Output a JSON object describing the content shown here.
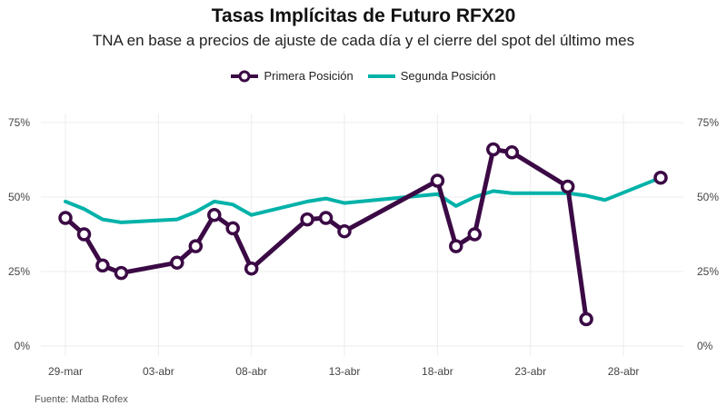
{
  "title": "Tasas Implícitas de Futuro RFX20",
  "subtitle": "TNA en base a precios de ajuste de cada día y el cierre del spot del último mes",
  "caption": "Fuente: Matba Rofex",
  "colors": {
    "series1": "#3b0a45",
    "series2": "#00b2a9",
    "grid": "#ececec",
    "background": "#ffffff"
  },
  "chart_data": {
    "type": "line",
    "title": "Tasas Implícitas de Futuro RFX20",
    "subtitle": "TNA en base a precios de ajuste de cada día y el cierre del spot del último mes",
    "x_axis": {
      "type": "date",
      "range": [
        "2021-03-29",
        "2021-04-30"
      ],
      "tick_labels": [
        "29-mar",
        "03-abr",
        "08-abr",
        "13-abr",
        "18-abr",
        "23-abr",
        "28-abr"
      ],
      "tick_dates": [
        "2021-03-29",
        "2021-04-03",
        "2021-04-08",
        "2021-04-13",
        "2021-04-18",
        "2021-04-23",
        "2021-04-28"
      ]
    },
    "y_axis": {
      "ylim": [
        0,
        0.75
      ],
      "tick_values": [
        0,
        0.25,
        0.5,
        0.75
      ],
      "tick_labels": [
        "0%",
        "25%",
        "50%",
        "75%"
      ],
      "mirrored_right": true
    },
    "grid": true,
    "legend_position": "top-center",
    "series": [
      {
        "name": "Primera Posición",
        "color": "#3b0a45",
        "markers": true,
        "points": [
          {
            "x": "2021-03-29",
            "y": 0.43
          },
          {
            "x": "2021-03-30",
            "y": 0.375
          },
          {
            "x": "2021-03-31",
            "y": 0.27
          },
          {
            "x": "2021-04-01",
            "y": 0.245
          },
          {
            "x": "2021-04-04",
            "y": 0.28
          },
          {
            "x": "2021-04-05",
            "y": 0.335
          },
          {
            "x": "2021-04-06",
            "y": 0.44
          },
          {
            "x": "2021-04-07",
            "y": 0.395
          },
          {
            "x": "2021-04-08",
            "y": 0.26
          },
          {
            "x": "2021-04-11",
            "y": 0.425
          },
          {
            "x": "2021-04-12",
            "y": 0.43
          },
          {
            "x": "2021-04-13",
            "y": 0.385
          },
          {
            "x": "2021-04-18",
            "y": 0.555
          },
          {
            "x": "2021-04-19",
            "y": 0.335
          },
          {
            "x": "2021-04-20",
            "y": 0.375
          },
          {
            "x": "2021-04-21",
            "y": 0.66
          },
          {
            "x": "2021-04-22",
            "y": 0.65
          },
          {
            "x": "2021-04-25",
            "y": 0.535
          },
          {
            "x": "2021-04-26",
            "y": 0.09
          },
          {
            "x": "2021-04-30",
            "y": 0.565
          }
        ],
        "connected_through": "2021-04-26"
      },
      {
        "name": "Segunda Posición",
        "color": "#00b2a9",
        "markers": false,
        "points": [
          {
            "x": "2021-03-29",
            "y": 0.485
          },
          {
            "x": "2021-03-30",
            "y": 0.46
          },
          {
            "x": "2021-03-31",
            "y": 0.425
          },
          {
            "x": "2021-04-01",
            "y": 0.415
          },
          {
            "x": "2021-04-04",
            "y": 0.425
          },
          {
            "x": "2021-04-05",
            "y": 0.45
          },
          {
            "x": "2021-04-06",
            "y": 0.485
          },
          {
            "x": "2021-04-07",
            "y": 0.475
          },
          {
            "x": "2021-04-08",
            "y": 0.44
          },
          {
            "x": "2021-04-11",
            "y": 0.485
          },
          {
            "x": "2021-04-12",
            "y": 0.495
          },
          {
            "x": "2021-04-13",
            "y": 0.48
          },
          {
            "x": "2021-04-18",
            "y": 0.51
          },
          {
            "x": "2021-04-19",
            "y": 0.47
          },
          {
            "x": "2021-04-20",
            "y": 0.5
          },
          {
            "x": "2021-04-21",
            "y": 0.52
          },
          {
            "x": "2021-04-22",
            "y": 0.513
          },
          {
            "x": "2021-04-25",
            "y": 0.513
          },
          {
            "x": "2021-04-26",
            "y": 0.505
          },
          {
            "x": "2021-04-27",
            "y": 0.49
          },
          {
            "x": "2021-04-30",
            "y": 0.565
          }
        ]
      }
    ]
  }
}
